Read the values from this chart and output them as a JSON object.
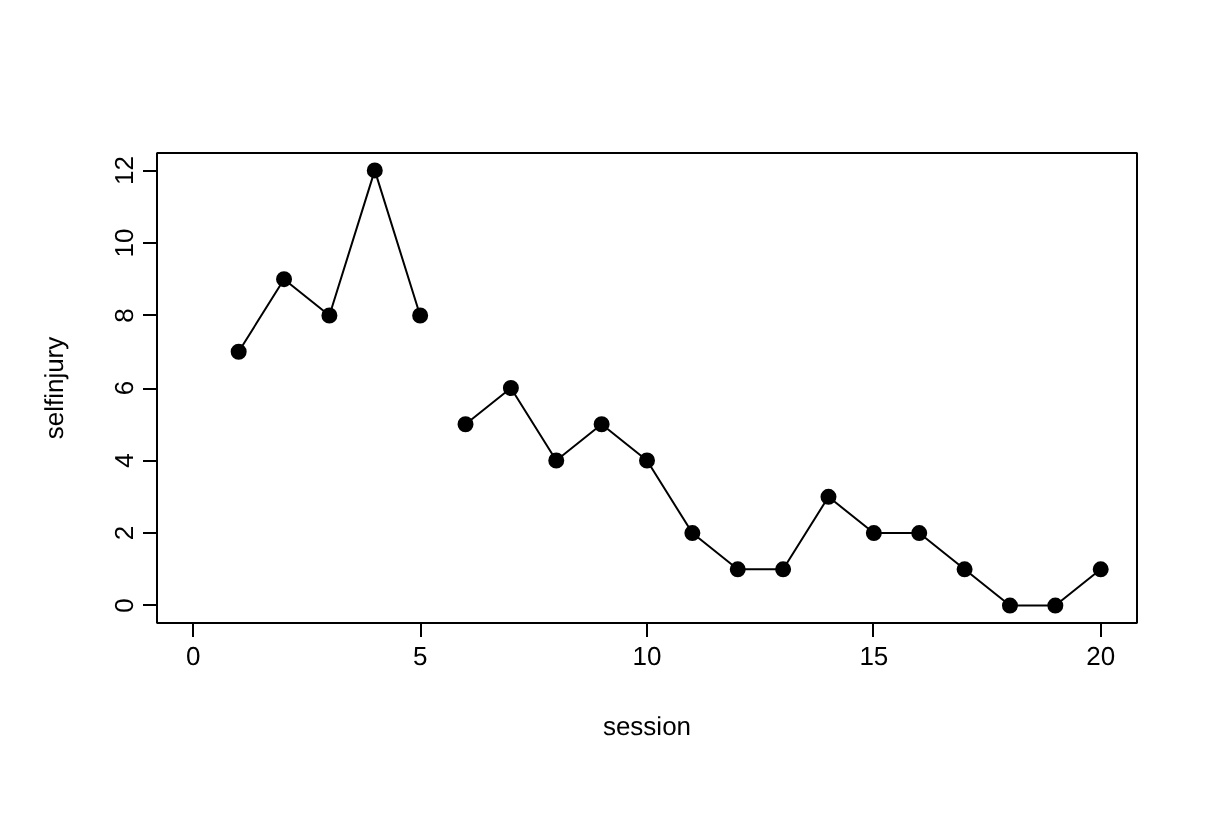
{
  "chart_data": {
    "type": "line",
    "xlabel": "session",
    "ylabel": "selfinjury",
    "series": [
      {
        "color": "#000000",
        "x": [
          1,
          2,
          3,
          4,
          5
        ],
        "values": [
          7,
          9,
          8,
          12,
          8
        ]
      },
      {
        "color": "#000000",
        "x": [
          6,
          7,
          8,
          9,
          10,
          11,
          12,
          13,
          14,
          15,
          16,
          17,
          18,
          19,
          20
        ],
        "values": [
          5,
          6,
          4,
          5,
          4,
          2,
          1,
          1,
          3,
          2,
          2,
          1,
          0,
          0,
          1
        ]
      }
    ],
    "xlim": [
      -0.8,
      20.8
    ],
    "ylim": [
      -0.48,
      12.48
    ],
    "xticks": [
      0,
      5,
      10,
      15,
      20
    ],
    "yticks": [
      0,
      2,
      4,
      6,
      8,
      10,
      12
    ],
    "marker": "circle",
    "line_style": "solid",
    "grid": false
  }
}
